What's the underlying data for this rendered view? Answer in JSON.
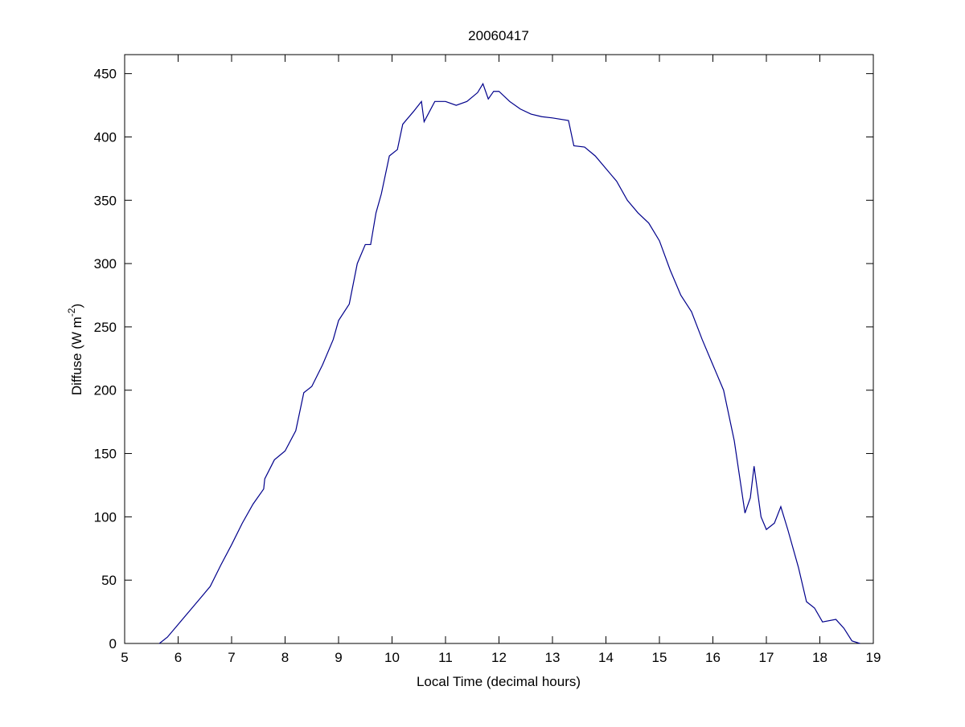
{
  "chart_data": {
    "type": "line",
    "title": "20060417",
    "xlabel": "Local Time (decimal hours)",
    "ylabel": [
      "Diffuse (W m",
      "-2",
      ")"
    ],
    "x": [
      5.65,
      5.8,
      6.0,
      6.2,
      6.4,
      6.6,
      6.8,
      7.0,
      7.2,
      7.4,
      7.6,
      7.62,
      7.8,
      8.0,
      8.2,
      8.35,
      8.5,
      8.7,
      8.9,
      9.0,
      9.2,
      9.35,
      9.5,
      9.6,
      9.7,
      9.8,
      9.95,
      10.1,
      10.2,
      10.4,
      10.55,
      10.6,
      10.8,
      11.0,
      11.2,
      11.4,
      11.6,
      11.7,
      11.8,
      11.9,
      12.0,
      12.2,
      12.4,
      12.6,
      12.8,
      13.0,
      13.3,
      13.4,
      13.6,
      13.8,
      14.0,
      14.2,
      14.4,
      14.6,
      14.8,
      15.0,
      15.2,
      15.4,
      15.6,
      15.8,
      16.0,
      16.2,
      16.4,
      16.6,
      16.7,
      16.77,
      16.9,
      17.0,
      17.15,
      17.27,
      17.4,
      17.6,
      17.75,
      17.9,
      18.05,
      18.3,
      18.45,
      18.6,
      18.75
    ],
    "series": [
      {
        "name": "Diffuse",
        "color": "#00008b",
        "values": [
          0,
          5,
          15,
          25,
          35,
          45,
          62,
          78,
          95,
          110,
          122,
          130,
          145,
          152,
          168,
          198,
          203,
          220,
          240,
          255,
          268,
          300,
          315,
          315,
          340,
          355,
          385,
          390,
          410,
          420,
          428,
          412,
          428,
          428,
          425,
          428,
          435,
          442,
          430,
          436,
          436,
          428,
          422,
          418,
          416,
          415,
          413,
          393,
          392,
          385,
          375,
          365,
          350,
          340,
          332,
          318,
          295,
          275,
          262,
          240,
          220,
          200,
          160,
          103,
          115,
          140,
          100,
          90,
          95,
          108,
          90,
          60,
          33,
          28,
          17,
          19,
          12,
          2,
          0
        ]
      }
    ],
    "xlim": [
      5,
      19
    ],
    "ylim": [
      0,
      465
    ],
    "xticks": [
      5,
      6,
      7,
      8,
      9,
      10,
      11,
      12,
      13,
      14,
      15,
      16,
      17,
      18,
      19
    ],
    "yticks": [
      0,
      50,
      100,
      150,
      200,
      250,
      300,
      350,
      400,
      450
    ]
  }
}
